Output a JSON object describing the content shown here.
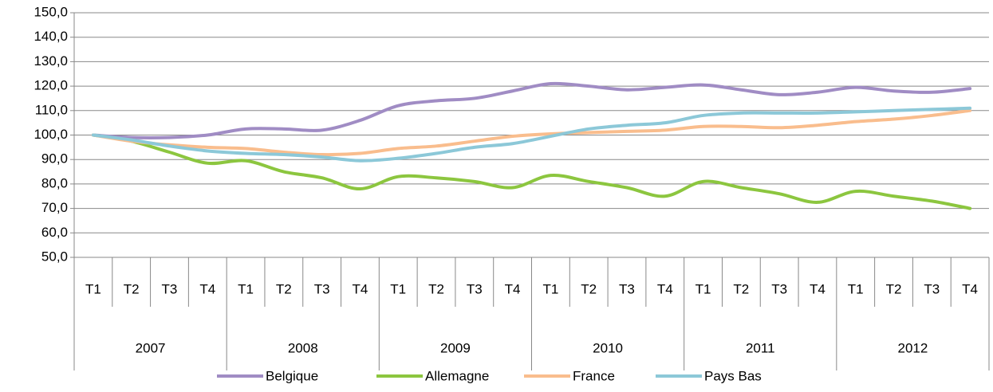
{
  "chart_data": {
    "type": "line",
    "categories": [
      "T1",
      "T2",
      "T3",
      "T4",
      "T1",
      "T2",
      "T3",
      "T4",
      "T1",
      "T2",
      "T3",
      "T4",
      "T1",
      "T2",
      "T3",
      "T4",
      "T1",
      "T2",
      "T3",
      "T4",
      "T1",
      "T2",
      "T3",
      "T4"
    ],
    "category_groups": [
      "2007",
      "2008",
      "2009",
      "2010",
      "2011",
      "2012"
    ],
    "series": [
      {
        "name": "Belgique",
        "color": "#a08cc4",
        "values": [
          100,
          99,
          99,
          100,
          102.5,
          102.5,
          102,
          106,
          112,
          114,
          115,
          118,
          121,
          120,
          118.5,
          119.5,
          120.5,
          118.5,
          116.5,
          117.5,
          119.5,
          118,
          117.5,
          119
        ]
      },
      {
        "name": "Allemagne",
        "color": "#8cc63f",
        "values": [
          100,
          97.5,
          93,
          88.5,
          89.5,
          85,
          82.5,
          78,
          83,
          82.5,
          81,
          78.5,
          83.5,
          81,
          78.5,
          75,
          81,
          78.5,
          76,
          72.5,
          77,
          75,
          73,
          70
        ]
      },
      {
        "name": "France",
        "color": "#f9bd8d",
        "values": [
          100,
          97.5,
          96,
          95,
          94.5,
          93,
          92,
          92.5,
          94.5,
          95.5,
          97.5,
          99.5,
          100.5,
          101,
          101.5,
          102,
          103.5,
          103.5,
          103,
          104,
          105.5,
          106.5,
          108,
          110
        ]
      },
      {
        "name": "Pays Bas",
        "color": "#8cc8d8",
        "values": [
          100,
          98,
          95.5,
          93.5,
          92.5,
          92,
          91,
          89.5,
          90.5,
          92.5,
          95,
          96.5,
          99.5,
          102.5,
          104,
          105,
          108,
          109,
          109,
          109,
          109.5,
          110,
          110.5,
          111
        ]
      }
    ],
    "ylim": [
      50,
      150
    ],
    "yticks": [
      {
        "value": 50,
        "label": "50,0"
      },
      {
        "value": 60,
        "label": "60,0"
      },
      {
        "value": 70,
        "label": "70,0"
      },
      {
        "value": 80,
        "label": "80,0"
      },
      {
        "value": 90,
        "label": "90,0"
      },
      {
        "value": 100,
        "label": "100,0"
      },
      {
        "value": 110,
        "label": "110,0"
      },
      {
        "value": 120,
        "label": "120,0"
      },
      {
        "value": 130,
        "label": "130,0"
      },
      {
        "value": 140,
        "label": "140,0"
      },
      {
        "value": 150,
        "label": "150,0"
      }
    ],
    "grid": true,
    "legend": "bottom"
  }
}
